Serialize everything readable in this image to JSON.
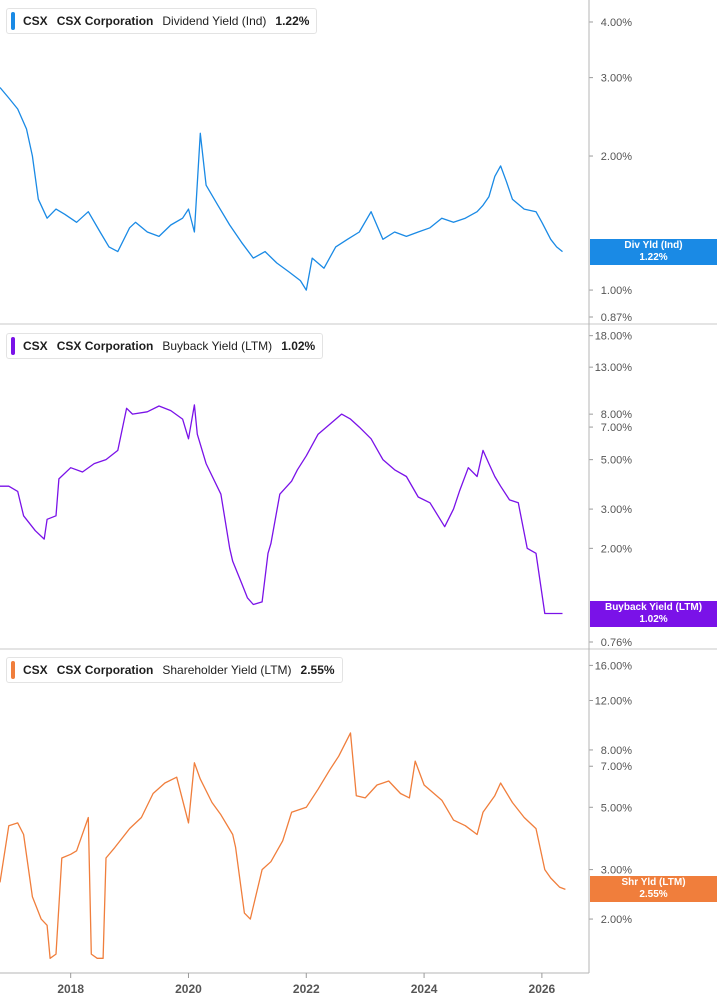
{
  "chart_data": [
    {
      "type": "line",
      "ticker": "CSX",
      "company": "CSX Corporation",
      "metric": "Dividend Yield (Ind)",
      "last_value": "1.22%",
      "flag_label": "Div Yld (Ind)",
      "color": "#1a8ae5",
      "y_scale": "log",
      "ylim": [
        0.87,
        4.3
      ],
      "yticks": [
        "4.00%",
        "3.00%",
        "2.00%",
        "1.00%",
        "0.87%"
      ],
      "ytick_values": [
        4.0,
        3.0,
        2.0,
        1.0,
        0.87
      ],
      "x": [
        2016.8,
        2016.95,
        2017.1,
        2017.25,
        2017.35,
        2017.45,
        2017.6,
        2017.75,
        2017.9,
        2018.1,
        2018.3,
        2018.5,
        2018.65,
        2018.8,
        2019.0,
        2019.1,
        2019.3,
        2019.5,
        2019.7,
        2019.9,
        2020.0,
        2020.1,
        2020.2,
        2020.3,
        2020.5,
        2020.7,
        2020.9,
        2021.1,
        2021.3,
        2021.5,
        2021.7,
        2021.9,
        2022.0,
        2022.1,
        2022.3,
        2022.5,
        2022.7,
        2022.9,
        2023.1,
        2023.3,
        2023.5,
        2023.7,
        2023.9,
        2024.1,
        2024.3,
        2024.5,
        2024.7,
        2024.9,
        2025.0,
        2025.1,
        2025.2,
        2025.3,
        2025.4,
        2025.5,
        2025.7,
        2025.9,
        2026.0,
        2026.15,
        2026.25,
        2026.35
      ],
      "values": [
        2.85,
        2.7,
        2.55,
        2.3,
        2.0,
        1.6,
        1.45,
        1.52,
        1.48,
        1.42,
        1.5,
        1.35,
        1.25,
        1.22,
        1.38,
        1.42,
        1.35,
        1.32,
        1.4,
        1.45,
        1.52,
        1.35,
        2.25,
        1.72,
        1.55,
        1.4,
        1.28,
        1.18,
        1.22,
        1.15,
        1.1,
        1.05,
        1.0,
        1.18,
        1.12,
        1.25,
        1.3,
        1.35,
        1.5,
        1.3,
        1.35,
        1.32,
        1.35,
        1.38,
        1.45,
        1.42,
        1.45,
        1.5,
        1.55,
        1.62,
        1.8,
        1.9,
        1.75,
        1.6,
        1.52,
        1.5,
        1.42,
        1.3,
        1.25,
        1.22
      ]
    },
    {
      "type": "line",
      "ticker": "CSX",
      "company": "CSX Corporation",
      "metric": "Buyback Yield (LTM)",
      "last_value": "1.02%",
      "flag_label": "Buyback Yield (LTM)",
      "color": "#7a12e8",
      "y_scale": "log",
      "ylim": [
        0.76,
        18.5
      ],
      "yticks": [
        "18.00%",
        "13.00%",
        "8.00%",
        "7.00%",
        "5.00%",
        "3.00%",
        "2.00%",
        "0.76%"
      ],
      "ytick_values": [
        18.0,
        13.0,
        8.0,
        7.0,
        5.0,
        3.0,
        2.0,
        0.76
      ],
      "x": [
        2016.8,
        2016.95,
        2017.1,
        2017.2,
        2017.4,
        2017.55,
        2017.6,
        2017.75,
        2017.8,
        2018.0,
        2018.2,
        2018.4,
        2018.6,
        2018.8,
        2018.95,
        2019.05,
        2019.3,
        2019.5,
        2019.7,
        2019.9,
        2020.0,
        2020.1,
        2020.15,
        2020.3,
        2020.55,
        2020.7,
        2020.75,
        2020.9,
        2021.0,
        2021.1,
        2021.25,
        2021.35,
        2021.4,
        2021.55,
        2021.75,
        2021.85,
        2022.0,
        2022.2,
        2022.4,
        2022.6,
        2022.75,
        2022.9,
        2023.1,
        2023.3,
        2023.5,
        2023.7,
        2023.9,
        2024.1,
        2024.35,
        2024.5,
        2024.6,
        2024.75,
        2024.9,
        2025.0,
        2025.1,
        2025.2,
        2025.3,
        2025.45,
        2025.6,
        2025.75,
        2025.9,
        2026.05,
        2026.15,
        2026.25,
        2026.35
      ],
      "values": [
        3.8,
        3.8,
        3.6,
        2.8,
        2.4,
        2.2,
        2.7,
        2.8,
        4.1,
        4.6,
        4.4,
        4.8,
        5.0,
        5.5,
        8.5,
        8.0,
        8.2,
        8.7,
        8.3,
        7.6,
        6.2,
        8.8,
        6.5,
        4.8,
        3.5,
        2.0,
        1.75,
        1.4,
        1.2,
        1.12,
        1.15,
        1.9,
        2.1,
        3.5,
        4.0,
        4.5,
        5.2,
        6.5,
        7.2,
        8.0,
        7.6,
        7.0,
        6.2,
        5.0,
        4.5,
        4.2,
        3.4,
        3.2,
        2.5,
        3.0,
        3.6,
        4.6,
        4.2,
        5.5,
        4.8,
        4.2,
        3.8,
        3.3,
        3.2,
        2.0,
        1.9,
        1.02,
        1.02,
        1.02,
        1.02
      ]
    },
    {
      "type": "line",
      "ticker": "CSX",
      "company": "CSX Corporation",
      "metric": "Shareholder Yield (LTM)",
      "last_value": "2.55%",
      "flag_label": "Shr Yld (LTM)",
      "color": "#f07e3c",
      "y_scale": "log",
      "ylim": [
        1.35,
        17.0
      ],
      "yticks": [
        "16.00%",
        "12.00%",
        "8.00%",
        "7.00%",
        "5.00%",
        "3.00%",
        "2.00%"
      ],
      "ytick_values": [
        16.0,
        12.0,
        8.0,
        7.0,
        5.0,
        3.0,
        2.0
      ],
      "x": [
        2016.8,
        2016.95,
        2017.1,
        2017.2,
        2017.35,
        2017.5,
        2017.6,
        2017.65,
        2017.75,
        2017.85,
        2018.0,
        2018.1,
        2018.3,
        2018.35,
        2018.45,
        2018.55,
        2018.6,
        2018.75,
        2019.0,
        2019.2,
        2019.4,
        2019.6,
        2019.8,
        2020.0,
        2020.1,
        2020.2,
        2020.4,
        2020.55,
        2020.75,
        2020.8,
        2020.95,
        2021.05,
        2021.25,
        2021.4,
        2021.6,
        2021.75,
        2022.0,
        2022.2,
        2022.4,
        2022.55,
        2022.75,
        2022.85,
        2023.0,
        2023.2,
        2023.4,
        2023.6,
        2023.75,
        2023.85,
        2024.0,
        2024.3,
        2024.5,
        2024.7,
        2024.9,
        2025.0,
        2025.2,
        2025.3,
        2025.5,
        2025.7,
        2025.9,
        2026.05,
        2026.15,
        2026.3,
        2026.4
      ],
      "values": [
        2.7,
        4.3,
        4.4,
        4.0,
        2.4,
        2.0,
        1.9,
        1.45,
        1.5,
        3.3,
        3.4,
        3.5,
        4.6,
        1.5,
        1.45,
        1.45,
        3.3,
        3.6,
        4.2,
        4.6,
        5.6,
        6.1,
        6.4,
        4.4,
        7.2,
        6.3,
        5.2,
        4.7,
        4.0,
        3.6,
        2.1,
        2.0,
        3.0,
        3.2,
        3.8,
        4.8,
        5.0,
        5.8,
        6.8,
        7.6,
        9.2,
        5.5,
        5.4,
        6.0,
        6.2,
        5.6,
        5.4,
        7.3,
        6.0,
        5.3,
        4.5,
        4.3,
        4.0,
        4.8,
        5.5,
        6.1,
        5.2,
        4.6,
        4.2,
        3.0,
        2.8,
        2.6,
        2.55
      ]
    }
  ],
  "x_axis": {
    "range": [
      2016.8,
      2026.8
    ],
    "ticks": [
      "2018",
      "2020",
      "2022",
      "2024",
      "2026"
    ],
    "tick_values": [
      2018,
      2020,
      2022,
      2024,
      2026
    ]
  }
}
